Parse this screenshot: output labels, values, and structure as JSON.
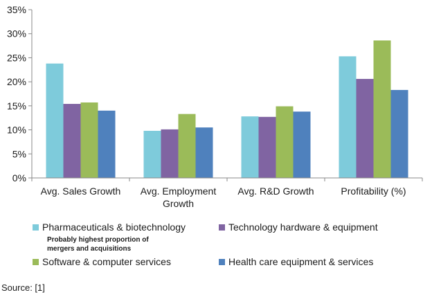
{
  "chart_data": {
    "type": "bar",
    "categories": [
      "Avg. Sales Growth",
      "Avg. Employment Growth",
      "Avg. R&D Growth",
      "Profitability (%)"
    ],
    "category_lines": [
      [
        "Avg. Sales Growth"
      ],
      [
        "Avg. Employment",
        "Growth"
      ],
      [
        "Avg. R&D Growth"
      ],
      [
        "Profitability (%)"
      ]
    ],
    "series": [
      {
        "name": "Pharmaceuticals & biotechnology",
        "color": "#7ecbdb",
        "values": [
          23.8,
          9.8,
          12.8,
          25.3
        ]
      },
      {
        "name": "Technology hardware & equipment",
        "color": "#8064a2",
        "values": [
          15.4,
          10.1,
          12.7,
          20.6
        ]
      },
      {
        "name": "Software & computer services",
        "color": "#9bbb59",
        "values": [
          15.7,
          13.3,
          14.9,
          28.6
        ]
      },
      {
        "name": "Health care equipment & services",
        "color": "#4f81bd",
        "values": [
          14.0,
          10.5,
          13.8,
          18.3
        ]
      }
    ],
    "ylim": [
      0,
      35
    ],
    "yticks": [
      0,
      5,
      10,
      15,
      20,
      25,
      30,
      35
    ],
    "ytick_labels": [
      "0%",
      "5%",
      "10%",
      "15%",
      "20%",
      "25%",
      "30%",
      "35%"
    ],
    "xlabel": "",
    "ylabel": "",
    "grid": false,
    "legend_position": "bottom"
  },
  "annotation": {
    "line1": "Probably highest proportion of",
    "line2": "mergers and acquisitions"
  },
  "source": "Source: [1]"
}
